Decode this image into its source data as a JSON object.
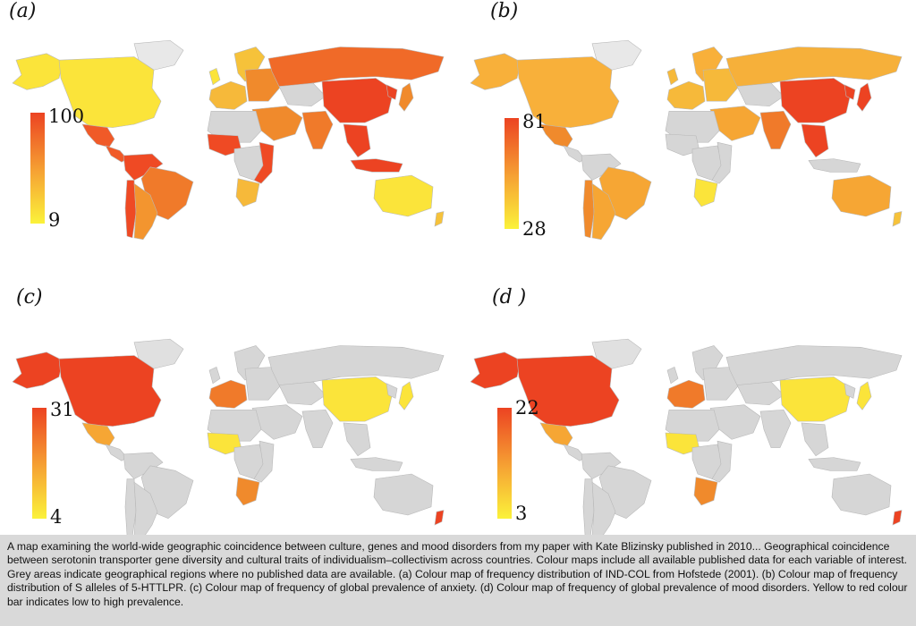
{
  "panels": [
    {
      "label": "(a)",
      "colorbar": {
        "max": "100",
        "min": "9"
      },
      "colors": {
        "north_america": "#fbe43a",
        "alaska": "#fbe43a",
        "greenland": "#e8e8e8",
        "mexico": "#f05a28",
        "central_america": "#f05a28",
        "south_america_north": "#ef4a24",
        "brazil": "#f07a2a",
        "argentina": "#f3952f",
        "chile": "#ef4a24",
        "europe_west": "#f6b93a",
        "europe_east": "#f08a2c",
        "scandinavia": "#f6c23a",
        "uk": "#fbe43a",
        "russia": "#f06a28",
        "middle_east": "#f08a2c",
        "central_asia": "#d6d6d6",
        "china": "#ec4322",
        "india": "#f07a2a",
        "southeast_asia": "#ec4322",
        "japan": "#f08a2c",
        "korea": "#ec4322",
        "north_africa": "#d6d6d6",
        "west_africa": "#ef4a24",
        "east_africa": "#ef4a24",
        "central_africa": "#d6d6d6",
        "south_africa": "#f6b93a",
        "australia": "#fbe43a",
        "new_zealand": "#f6c23a",
        "indonesia": "#ec4322"
      }
    },
    {
      "label": "(b)",
      "colorbar": {
        "max": "81",
        "min": "28"
      },
      "colors": {
        "north_america": "#f8b03a",
        "alaska": "#f8b03a",
        "greenland": "#e8e8e8",
        "mexico": "#f08a2c",
        "central_america": "#d6d6d6",
        "south_america_north": "#d6d6d6",
        "brazil": "#f6a634",
        "argentina": "#f6a634",
        "chile": "#f08a2c",
        "europe_west": "#f6b93a",
        "europe_east": "#f6b93a",
        "scandinavia": "#f8b03a",
        "uk": "#f6b93a",
        "russia": "#f6b03a",
        "middle_east": "#f6a634",
        "central_asia": "#d6d6d6",
        "china": "#ec4322",
        "india": "#f07a2a",
        "southeast_asia": "#ec4322",
        "japan": "#ec4322",
        "korea": "#ec4322",
        "north_africa": "#d6d6d6",
        "west_africa": "#d6d6d6",
        "east_africa": "#d6d6d6",
        "central_africa": "#d6d6d6",
        "south_africa": "#fbe43a",
        "australia": "#f6a634",
        "new_zealand": "#f6c23a",
        "indonesia": "#d6d6d6"
      }
    },
    {
      "label": "(c)",
      "colorbar": {
        "max": "31",
        "min": "4"
      },
      "colors": {
        "north_america": "#ec4322",
        "alaska": "#ec4322",
        "greenland": "#e0e0e0",
        "mexico": "#f6a634",
        "central_america": "#d6d6d6",
        "south_america_north": "#d6d6d6",
        "brazil": "#d6d6d6",
        "argentina": "#d6d6d6",
        "chile": "#d6d6d6",
        "europe_west": "#f07a2a",
        "europe_east": "#d6d6d6",
        "scandinavia": "#d6d6d6",
        "uk": "#d6d6d6",
        "russia": "#d6d6d6",
        "middle_east": "#d6d6d6",
        "central_asia": "#d6d6d6",
        "china": "#fbe43a",
        "india": "#d6d6d6",
        "southeast_asia": "#d6d6d6",
        "japan": "#fbe43a",
        "korea": "#d6d6d6",
        "north_africa": "#d6d6d6",
        "west_africa": "#fbe43a",
        "east_africa": "#d6d6d6",
        "central_africa": "#d6d6d6",
        "south_africa": "#f08a2c",
        "australia": "#d6d6d6",
        "new_zealand": "#ec4322",
        "indonesia": "#d6d6d6"
      }
    },
    {
      "label": "(d )",
      "colorbar": {
        "max": "22",
        "min": "3"
      },
      "colors": {
        "north_america": "#ec4322",
        "alaska": "#ec4322",
        "greenland": "#e0e0e0",
        "mexico": "#f6a634",
        "central_america": "#d6d6d6",
        "south_america_north": "#d6d6d6",
        "brazil": "#d6d6d6",
        "argentina": "#d6d6d6",
        "chile": "#d6d6d6",
        "europe_west": "#f07a2a",
        "europe_east": "#d6d6d6",
        "scandinavia": "#d6d6d6",
        "uk": "#d6d6d6",
        "russia": "#d6d6d6",
        "middle_east": "#d6d6d6",
        "central_asia": "#d6d6d6",
        "china": "#fbe43a",
        "india": "#d6d6d6",
        "southeast_asia": "#d6d6d6",
        "japan": "#fbe43a",
        "korea": "#d6d6d6",
        "north_africa": "#d6d6d6",
        "west_africa": "#fbe43a",
        "east_africa": "#d6d6d6",
        "central_africa": "#d6d6d6",
        "south_africa": "#f08a2c",
        "australia": "#d6d6d6",
        "new_zealand": "#ec4322",
        "indonesia": "#d6d6d6"
      }
    }
  ],
  "colorbar_gradient": {
    "high": "#ec4322",
    "mid": "#f6a634",
    "low": "#fbf23a"
  },
  "caption": {
    "text": "A map examining the world-wide geographic coincidence between culture, genes and mood disorders from my paper with Kate Blizinsky published in 2010... Geographical coincidence between serotonin transporter gene diversity and cultural traits of individualism–collectivism across countries. Colour maps include all available published data for each variable of interest. Grey areas indicate geographical regions where no published data are available. (a) Colour map of frequency distribution of IND-COL from Hofstede (2001). (b) Colour map of frequency distribution of S alleles of 5-HTTLPR. (c) Colour map of frequency of global prevalence of anxiety. (d) Colour map of frequency of global prevalence of mood disorders. Yellow to red colour bar indicates low to high prevalence."
  }
}
